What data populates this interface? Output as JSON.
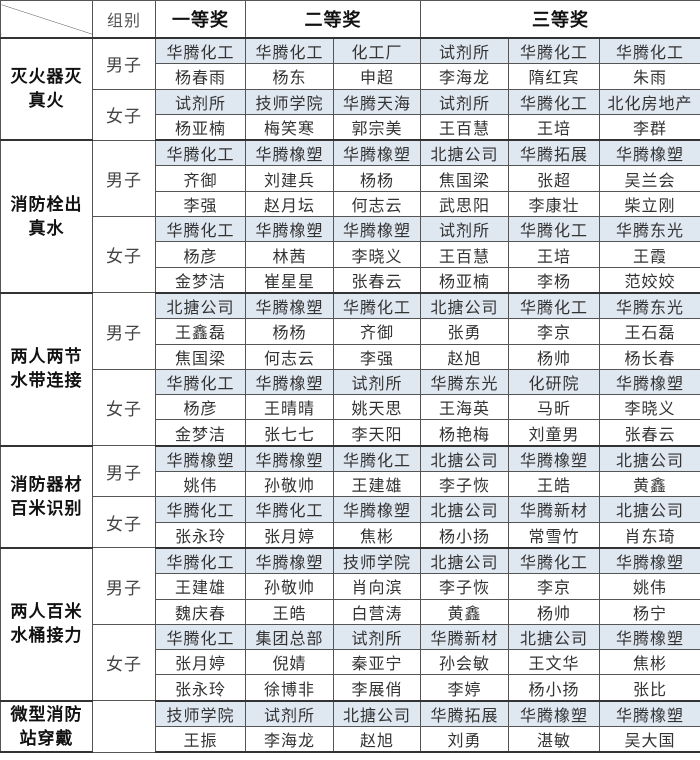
{
  "header": {
    "group_label": "组别",
    "first_prize": "一等奖",
    "second_prize": "二等奖",
    "third_prize": "三等奖"
  },
  "colors": {
    "org_row_bg": "#dfe7f1",
    "border": "#555555"
  },
  "events": [
    {
      "name": "灭火器灭真火",
      "groups": [
        {
          "label": "男子",
          "rows": [
            [
              "华腾化工",
              "华腾化工",
              "化工厂",
              "试剂所",
              "华腾化工",
              "华腾化工"
            ],
            [
              "杨春雨",
              "杨东",
              "申超",
              "李海龙",
              "隋红宾",
              "朱雨"
            ]
          ]
        },
        {
          "label": "女子",
          "rows": [
            [
              "试剂所",
              "技师学院",
              "华腾天海",
              "试剂所",
              "华腾化工",
              "北化房地产"
            ],
            [
              "杨亚楠",
              "梅笑寒",
              "郭宗美",
              "王百慧",
              "王培",
              "李群"
            ]
          ]
        }
      ]
    },
    {
      "name": "消防栓出真水",
      "groups": [
        {
          "label": "男子",
          "rows": [
            [
              "华腾化工",
              "华腾橡塑",
              "华腾橡塑",
              "北搪公司",
              "华腾拓展",
              "华腾橡塑"
            ],
            [
              "齐御",
              "刘建兵",
              "杨杨",
              "焦国梁",
              "张超",
              "吴兰会"
            ],
            [
              "李强",
              "赵月坛",
              "何志云",
              "武思阳",
              "李康壮",
              "柴立刚"
            ]
          ]
        },
        {
          "label": "女子",
          "rows": [
            [
              "华腾化工",
              "华腾橡塑",
              "华腾橡塑",
              "试剂所",
              "华腾化工",
              "华腾东光"
            ],
            [
              "杨彦",
              "林茜",
              "李晓义",
              "王百慧",
              "王培",
              "王霞"
            ],
            [
              "金梦洁",
              "崔星星",
              "张春云",
              "杨亚楠",
              "李杨",
              "范姣姣"
            ]
          ]
        }
      ]
    },
    {
      "name": "两人两节水带连接",
      "groups": [
        {
          "label": "男子",
          "rows": [
            [
              "北搪公司",
              "华腾橡塑",
              "华腾化工",
              "北搪公司",
              "华腾化工",
              "华腾东光"
            ],
            [
              "王鑫磊",
              "杨杨",
              "齐御",
              "张勇",
              "李京",
              "王石磊"
            ],
            [
              "焦国梁",
              "何志云",
              "李强",
              "赵旭",
              "杨帅",
              "杨长春"
            ]
          ]
        },
        {
          "label": "女子",
          "rows": [
            [
              "华腾化工",
              "华腾橡塑",
              "试剂所",
              "华腾东光",
              "化研院",
              "华腾橡塑"
            ],
            [
              "杨彦",
              "王晴晴",
              "姚天思",
              "王海英",
              "马昕",
              "李晓义"
            ],
            [
              "金梦洁",
              "张七七",
              "李天阳",
              "杨艳梅",
              "刘童男",
              "张春云"
            ]
          ]
        }
      ]
    },
    {
      "name": "消防器材百米识别",
      "groups": [
        {
          "label": "男子",
          "rows": [
            [
              "华腾橡塑",
              "华腾橡塑",
              "华腾化工",
              "北搪公司",
              "华腾橡塑",
              "北搪公司"
            ],
            [
              "姚伟",
              "孙敬帅",
              "王建雄",
              "李子恢",
              "王皓",
              "黄鑫"
            ]
          ]
        },
        {
          "label": "女子",
          "rows": [
            [
              "华腾化工",
              "华腾化工",
              "华腾橡塑",
              "北搪公司",
              "华腾新材",
              "北搪公司"
            ],
            [
              "张永玲",
              "张月婷",
              "焦彬",
              "杨小扬",
              "常雪竹",
              "肖东琦"
            ]
          ]
        }
      ]
    },
    {
      "name": "两人百米水桶接力",
      "groups": [
        {
          "label": "男子",
          "rows": [
            [
              "华腾化工",
              "华腾橡塑",
              "技师学院",
              "北搪公司",
              "华腾化工",
              "华腾橡塑"
            ],
            [
              "王建雄",
              "孙敬帅",
              "肖向滨",
              "李子恢",
              "李京",
              "姚伟"
            ],
            [
              "魏庆春",
              "王皓",
              "白营涛",
              "黄鑫",
              "杨帅",
              "杨宁"
            ]
          ]
        },
        {
          "label": "女子",
          "rows": [
            [
              "华腾化工",
              "集团总部",
              "试剂所",
              "华腾新材",
              "北搪公司",
              "华腾橡塑"
            ],
            [
              "张月婷",
              "倪婧",
              "秦亚宁",
              "孙会敏",
              "王文华",
              "焦彬"
            ],
            [
              "张永玲",
              "徐博非",
              "李展俏",
              "李婷",
              "杨小扬",
              "张比"
            ]
          ]
        }
      ]
    },
    {
      "name": "微型消防站穿戴",
      "groups": [
        {
          "label": "",
          "rows": [
            [
              "技师学院",
              "试剂所",
              "北搪公司",
              "华腾拓展",
              "华腾橡塑",
              "华腾橡塑"
            ],
            [
              "王振",
              "李海龙",
              "赵旭",
              "刘勇",
              "湛敏",
              "吴大国"
            ]
          ]
        }
      ]
    }
  ]
}
